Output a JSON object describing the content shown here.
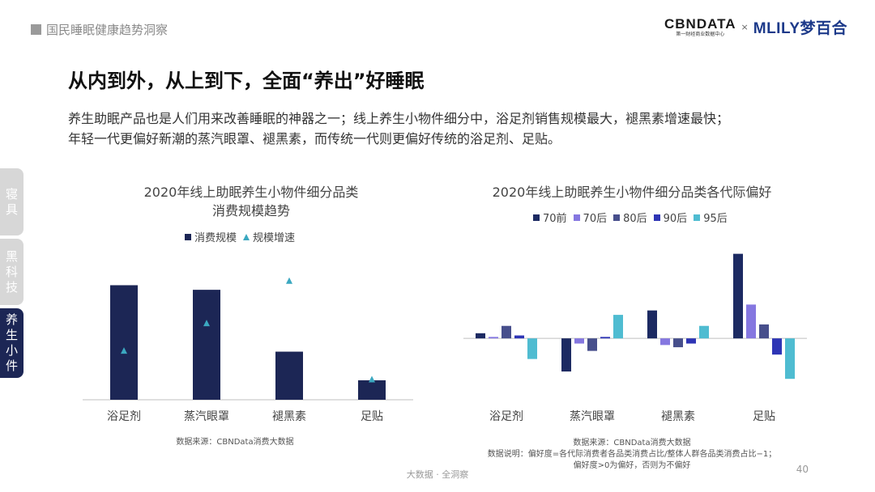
{
  "header": {
    "section": "国民睡眠健康趋势洞察",
    "logo_cbn": "CBNDATA",
    "logo_cbn_sub": "第一财经商业数据中心",
    "logo_x": "×",
    "logo_mlily": "MLILY梦百合"
  },
  "title": "从内到外，从上到下，全面“养出”好睡眠",
  "description": [
    "养生助眠产品也是人们用来改善睡眠的神器之一；线上养生小物件细分中，浴足剂销售规模最大，褪黑素增速最快；",
    "年轻一代更偏好新潮的蒸汽眼罩、褪黑素，而传统一代则更偏好传统的浴足剂、足贴。"
  ],
  "side_tabs": [
    {
      "label": "寝具",
      "active": false
    },
    {
      "label": "黑科技",
      "active": false
    },
    {
      "label": "养生小件",
      "active": true
    }
  ],
  "colors": {
    "navy": "#1c2655",
    "cyan": "#3ba8c0",
    "s70qian": "#1c2a62",
    "s70hou": "#8577e0",
    "s80hou": "#474f8c",
    "s90hou": "#2e35b5",
    "s95hou": "#4fbcd1"
  },
  "chart_data": [
    {
      "type": "bar",
      "title_lines": [
        "2020年线上助眠养生小物件细分品类",
        "消费规模趋势"
      ],
      "categories": [
        "浴足剂",
        "蒸汽眼罩",
        "褪黑素",
        "足贴"
      ],
      "series": [
        {
          "name": "消费规模",
          "type": "bar",
          "values": [
            100,
            96,
            42,
            17
          ]
        },
        {
          "name": "规模增速",
          "type": "scatter",
          "marker": "triangle",
          "values": [
            43,
            67,
            104,
            18
          ]
        }
      ],
      "ylim": [
        0,
        130
      ],
      "grid": false,
      "legend": "top",
      "source": "数据来源：CBNData消费大数据"
    },
    {
      "type": "bar",
      "title": "2020年线上助眠养生小物件细分品类各代际偏好",
      "categories": [
        "浴足剂",
        "蒸汽眼罩",
        "褪黑素",
        "足贴"
      ],
      "series": [
        {
          "name": "70前",
          "values": [
            0.07,
            -0.45,
            0.38,
            1.15
          ]
        },
        {
          "name": "70后",
          "values": [
            0.02,
            -0.07,
            -0.09,
            0.46
          ]
        },
        {
          "name": "80后",
          "values": [
            0.17,
            -0.17,
            -0.12,
            0.19
          ]
        },
        {
          "name": "90后",
          "values": [
            0.04,
            0.02,
            -0.07,
            -0.22
          ]
        },
        {
          "name": "95后",
          "values": [
            -0.28,
            0.32,
            0.17,
            -0.55
          ]
        }
      ],
      "ylim": [
        -0.9,
        1.3
      ],
      "grid": false,
      "legend": "top",
      "source": "数据来源：CBNData消费大数据",
      "note_lines": [
        "数据说明：偏好度=各代际消费者各品类消费占比/整体人群各品类消费占比−1；",
        "偏好度>0为偏好，否则为不偏好"
      ]
    }
  ],
  "footer": "大数据 · 全洞察",
  "page_number": "40"
}
